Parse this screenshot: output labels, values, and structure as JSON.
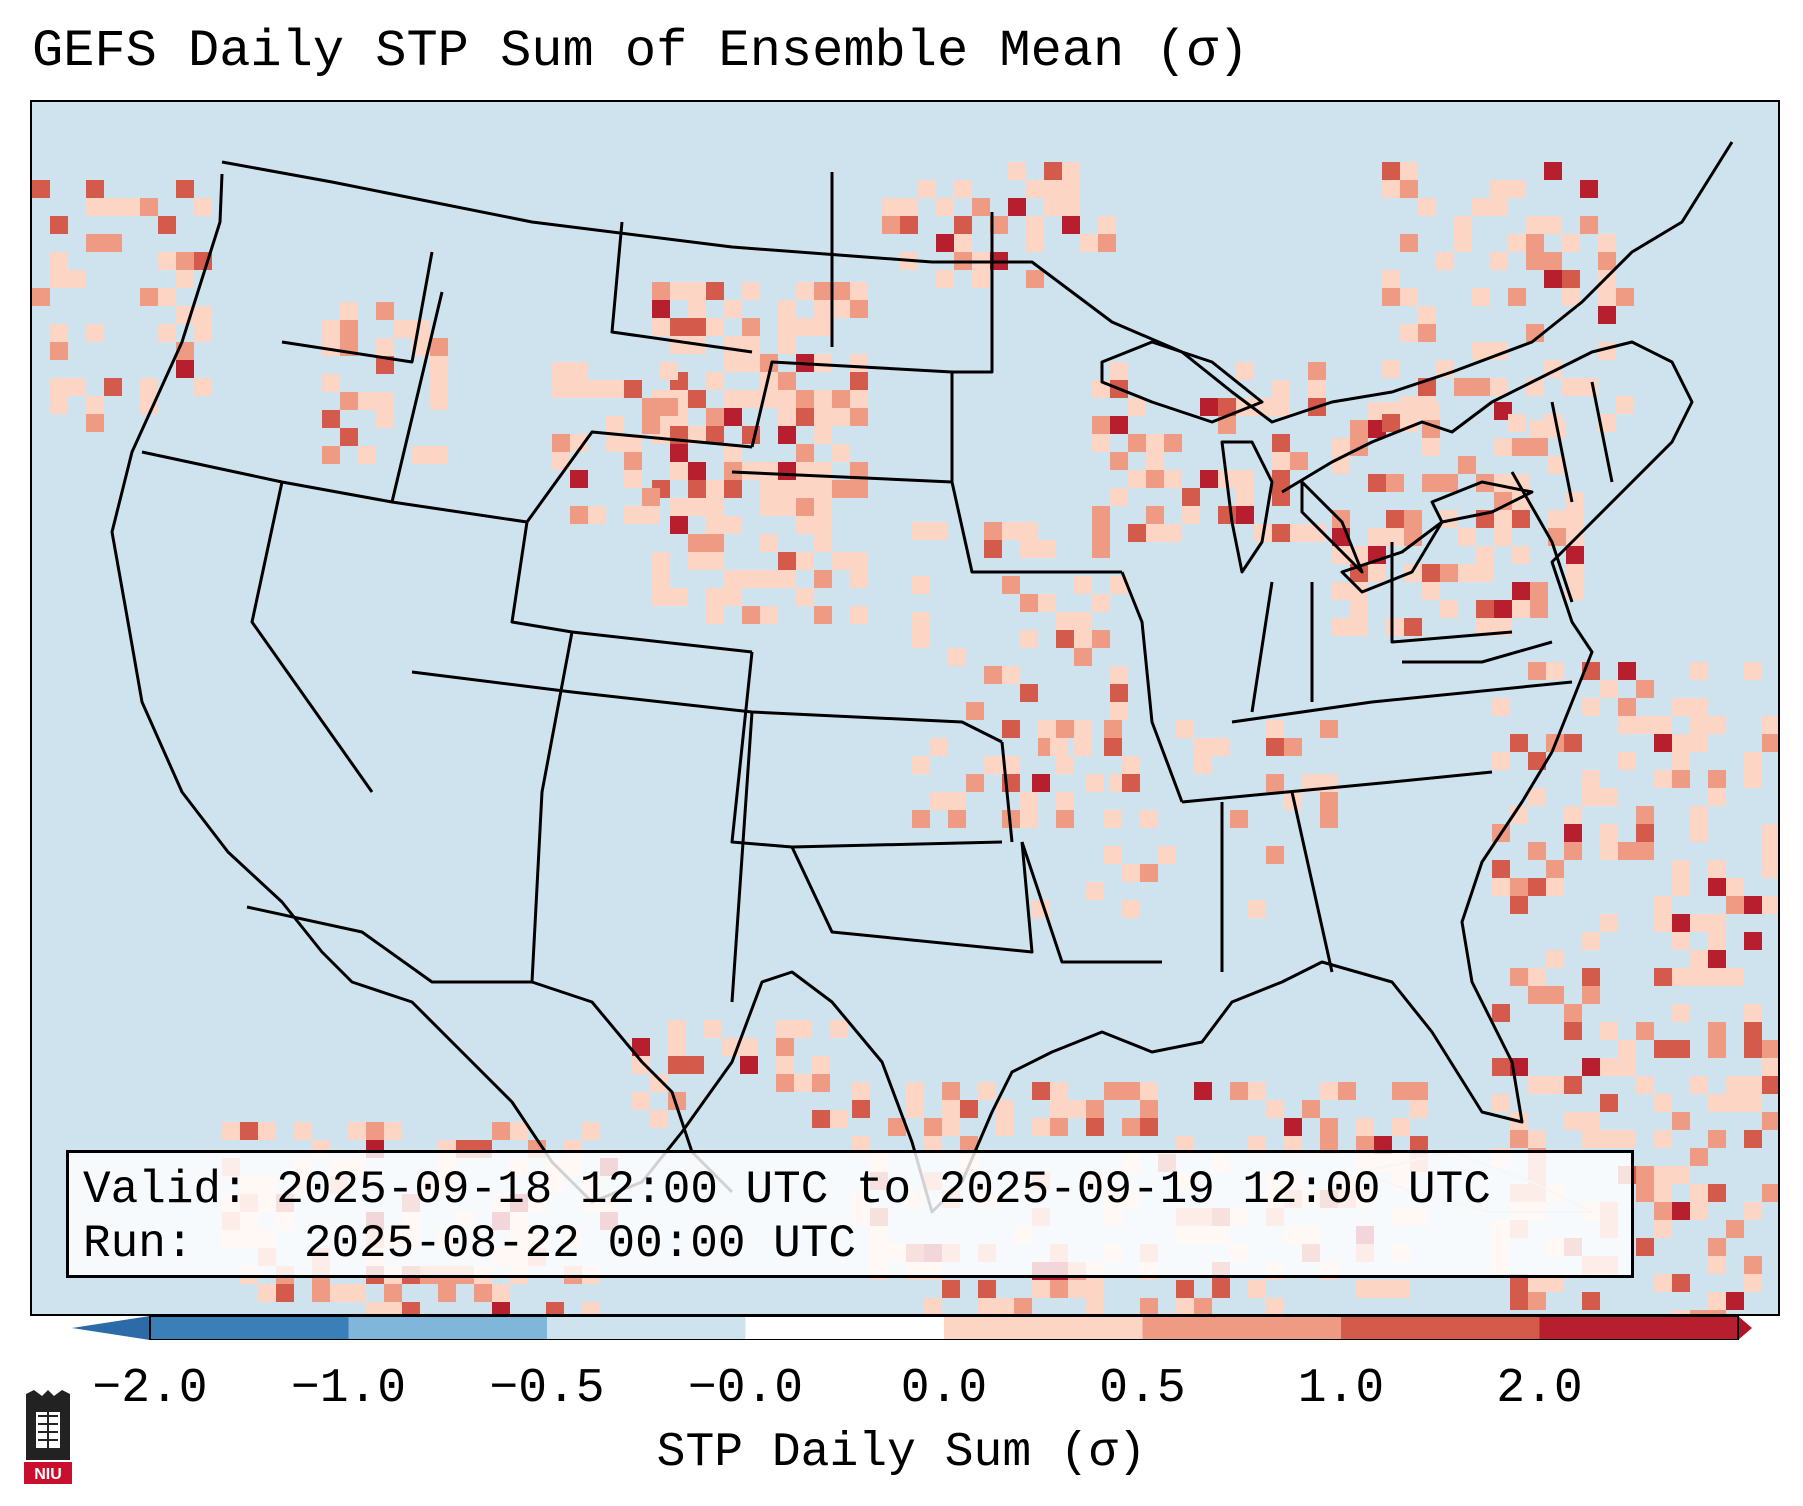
{
  "title": "GEFS Daily STP Sum of Ensemble Mean (σ)",
  "info": {
    "valid_label": "Valid:",
    "valid_value": "2025-09-18 12:00 UTC to 2025-09-19 12:00 UTC",
    "run_label": "Run:",
    "run_value": "2025-08-22 00:00 UTC"
  },
  "colorbar": {
    "label": "STP Daily Sum (σ)",
    "ticks": [
      "−2.0",
      "−1.0",
      "−0.5",
      "−0.0",
      "0.0",
      "0.5",
      "1.0",
      "2.0"
    ],
    "colors": [
      "#3b7fb8",
      "#7fb6d9",
      "#cfe3ef",
      "#ffffff",
      "#fcd5c4",
      "#ef9b83",
      "#d45a4c",
      "#b81f2e"
    ],
    "extend_low_color": "#2c6aa8",
    "extend_high_color": "#b0142a"
  },
  "map": {
    "background_color": "#cfe3ef",
    "region": "Continental United States"
  },
  "logo": {
    "text": "NIU",
    "color": "#c8102e"
  }
}
